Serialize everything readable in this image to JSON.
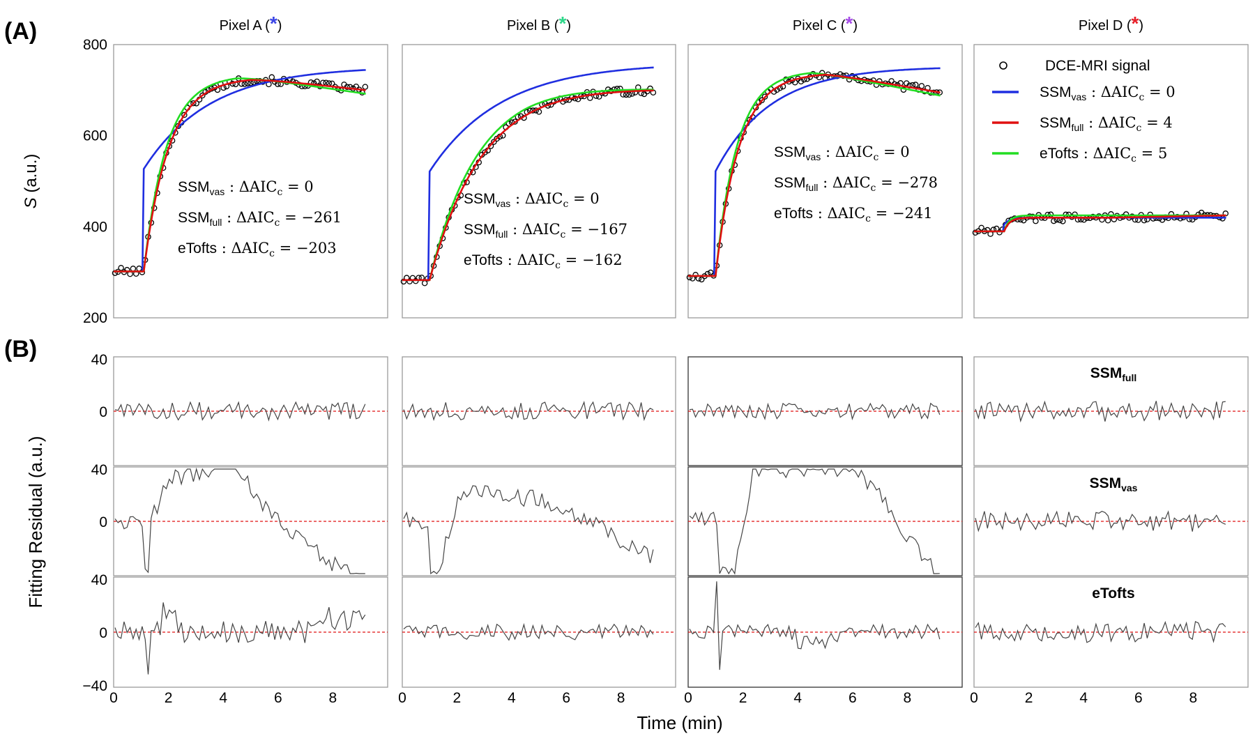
{
  "chart_data": [
    {
      "type": "line",
      "id": "A",
      "panel_label": "(A)",
      "ylabel_var": "S",
      "ylabel_unit": " (a.u.)",
      "ylim": [
        200,
        800
      ],
      "yticks": [
        "800",
        "600",
        "400",
        "200"
      ],
      "xlim": [
        0,
        10
      ],
      "grid": false,
      "pixels": [
        {
          "title": "Pixel A (",
          "title_close": ")",
          "star": "*",
          "star_color": "#3c46e6",
          "baseline": 302,
          "t0": 1.1,
          "blue_plateau": 752,
          "red_peak": 728,
          "red_end": 700,
          "green_end": 692,
          "tau_blue": 2.4,
          "tau_red": 0.9,
          "annotations": [
            {
              "model": "SSM",
              "sub": "vas",
              "sep": " : ΔAIC",
              "sub2": "c",
              "eq": " = 0"
            },
            {
              "model": "SSM",
              "sub": "full",
              "sep": " : ΔAIC",
              "sub2": "c",
              "eq": " = −261"
            },
            {
              "model": "eTofts",
              "sub": "",
              "sep": " : ΔAIC",
              "sub2": "c",
              "eq": " = −203"
            }
          ]
        },
        {
          "title": "Pixel B (",
          "title_close": ")",
          "star": "*",
          "star_color": "#2ed88a",
          "baseline": 283,
          "t0": 1.0,
          "blue_plateau": 760,
          "red_peak": 712,
          "red_end": 705,
          "green_end": 705,
          "tau_blue": 2.6,
          "tau_red": 1.9,
          "annotations": [
            {
              "model": "SSM",
              "sub": "vas",
              "sep": " : ΔAIC",
              "sub2": "c",
              "eq": " = 0"
            },
            {
              "model": "SSM",
              "sub": "full",
              "sep": " : ΔAIC",
              "sub2": "c",
              "eq": " = −167"
            },
            {
              "model": "eTofts",
              "sub": "",
              "sep": " : ΔAIC",
              "sub2": "c",
              "eq": " = −162"
            }
          ]
        },
        {
          "title": "Pixel C (",
          "title_close": ")",
          "star": "*",
          "star_color": "#a64ce8",
          "baseline": 292,
          "t0": 1.0,
          "blue_plateau": 752,
          "red_peak": 738,
          "red_end": 695,
          "green_end": 688,
          "tau_blue": 2.0,
          "tau_red": 0.85,
          "annotations": [
            {
              "model": "SSM",
              "sub": "vas",
              "sep": " : ΔAIC",
              "sub2": "c",
              "eq": " = 0"
            },
            {
              "model": "SSM",
              "sub": "full",
              "sep": " : ΔAIC",
              "sub2": "c",
              "eq": " = −278"
            },
            {
              "model": "eTofts",
              "sub": "",
              "sep": " : ΔAIC",
              "sub2": "c",
              "eq": " = −241"
            }
          ]
        },
        {
          "title": "Pixel D (",
          "title_close": ")",
          "star": "*",
          "star_color": "#e8202a",
          "baseline": 390,
          "t0": 1.1,
          "blue_plateau": 420,
          "red_peak": 420,
          "red_end": 425,
          "green_end": 425,
          "tau_blue": 0.2,
          "tau_red": 0.2,
          "annotations": []
        }
      ],
      "legend": {
        "position": "top-right of Pixel D panel",
        "signal_label": "DCE-MRI signal",
        "entries": [
          {
            "model": "SSM",
            "sub": "vas",
            "sep": " : ΔAIC",
            "sub2": "c",
            "eq": " = 0",
            "color": "#1f2ee0"
          },
          {
            "model": "SSM",
            "sub": "full",
            "sep": " : ΔAIC",
            "sub2": "c",
            "eq": " = 4",
            "color": "#e01010"
          },
          {
            "model": "eTofts",
            "sub": "",
            "sep": " : ΔAIC",
            "sub2": "c",
            "eq": " = 5",
            "color": "#22dd22"
          }
        ]
      },
      "series_colors": {
        "signal": "#000000",
        "ssm_vas": "#1f2ee0",
        "ssm_full": "#e01010",
        "etofts": "#22dd22"
      }
    },
    {
      "type": "line",
      "id": "B",
      "panel_label": "(B)",
      "ylabel": "Fitting Residual  (a.u.)",
      "xlabel": "Time (min)",
      "xlim": [
        0,
        10
      ],
      "ylim": [
        -40,
        40
      ],
      "xticks": [
        "0",
        "2",
        "4",
        "6",
        "8"
      ],
      "row_ticks": [
        [
          "40",
          "0"
        ],
        [
          "40",
          "0"
        ],
        [
          "40",
          "0",
          "−40"
        ]
      ],
      "row_labels": [
        {
          "model": "SSM",
          "sub": "full"
        },
        {
          "model": "SSM",
          "sub": "vas"
        },
        {
          "model": "eTofts",
          "sub": ""
        }
      ],
      "zero_line_color": "#e01010",
      "residual_color": "#444444",
      "amplitudes": [
        [
          7,
          7,
          6,
          8
        ],
        [
          7,
          7,
          7,
          8
        ],
        [
          9,
          6,
          6,
          8
        ]
      ],
      "trends": [
        [
          "none",
          "none",
          "none",
          "none"
        ],
        [
          "vasA",
          "vasB",
          "vasC",
          "none"
        ],
        [
          "etA",
          "none",
          "etC",
          "none"
        ]
      ]
    }
  ]
}
